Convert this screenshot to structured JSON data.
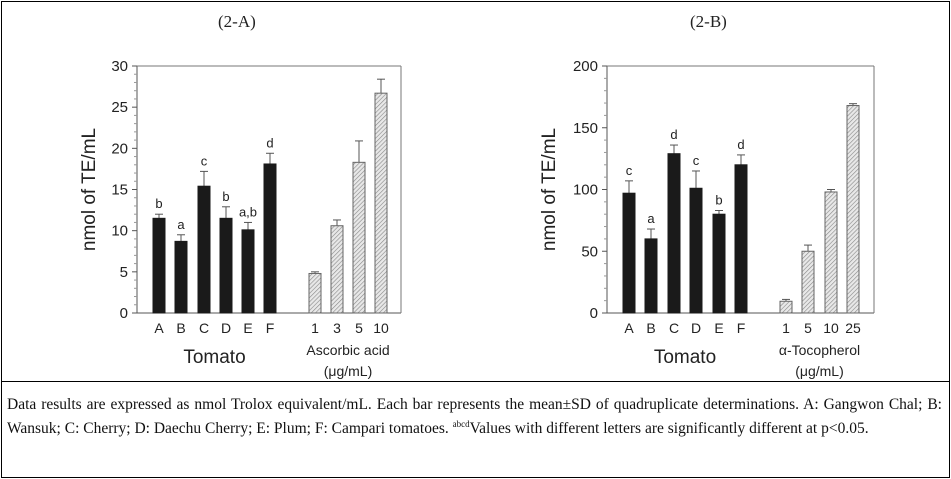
{
  "chart_data": [
    {
      "type": "bar",
      "title": "(2-A)",
      "ylabel": "nmol of TE/mL",
      "ylim": [
        0,
        30
      ],
      "yticks": [
        0,
        5,
        10,
        15,
        20,
        25,
        30
      ],
      "grid": false,
      "groups": [
        {
          "label": "Tomato",
          "style": "solid",
          "color": "#1a1a1a",
          "categories": [
            "A",
            "B",
            "C",
            "D",
            "E",
            "F"
          ],
          "values": [
            11.5,
            8.7,
            15.4,
            11.5,
            10.1,
            18.1
          ],
          "errors": [
            0.5,
            0.8,
            1.8,
            1.4,
            0.9,
            1.3
          ],
          "letters": [
            "b",
            "a",
            "c",
            "b",
            "a,b",
            "d"
          ]
        },
        {
          "label": "Ascorbic acid",
          "sublabel": "(μg/mL)",
          "style": "hatched",
          "color": "#999999",
          "categories": [
            "1",
            "3",
            "5",
            "10"
          ],
          "values": [
            4.8,
            10.6,
            18.3,
            26.7
          ],
          "errors": [
            0.2,
            0.7,
            2.6,
            1.7
          ],
          "letters": [
            "",
            "",
            "",
            ""
          ]
        }
      ]
    },
    {
      "type": "bar",
      "title": "(2-B)",
      "ylabel": "nmol of TE/mL",
      "ylim": [
        0,
        200
      ],
      "yticks": [
        0,
        50,
        100,
        150,
        200
      ],
      "grid": false,
      "groups": [
        {
          "label": "Tomato",
          "style": "solid",
          "color": "#1a1a1a",
          "categories": [
            "A",
            "B",
            "C",
            "D",
            "E",
            "F"
          ],
          "values": [
            97,
            60,
            129,
            101,
            80,
            120
          ],
          "errors": [
            10,
            8,
            7,
            14,
            3,
            8
          ],
          "letters": [
            "c",
            "a",
            "d",
            "c",
            "b",
            "d"
          ]
        },
        {
          "label": "α-Tocopherol",
          "sublabel": "(μg/mL)",
          "style": "hatched",
          "color": "#999999",
          "categories": [
            "1",
            "5",
            "10",
            "25"
          ],
          "values": [
            9.5,
            50,
            98,
            168
          ],
          "errors": [
            1.5,
            5,
            2,
            1.5
          ],
          "letters": [
            "",
            "",
            "",
            ""
          ]
        }
      ]
    }
  ],
  "caption": {
    "text1": "Data results are expressed as nmol Trolox equivalent/mL. Each bar represents the mean±SD of quadruplicate determinations. A: Gangwon Chal; B: Wansuk; C: Cherry; D: Daechu Cherry; E: Plum; F: Campari tomatoes. ",
    "sup": "abcd",
    "text2": "Values with different letters are significantly different at p<0.05."
  }
}
